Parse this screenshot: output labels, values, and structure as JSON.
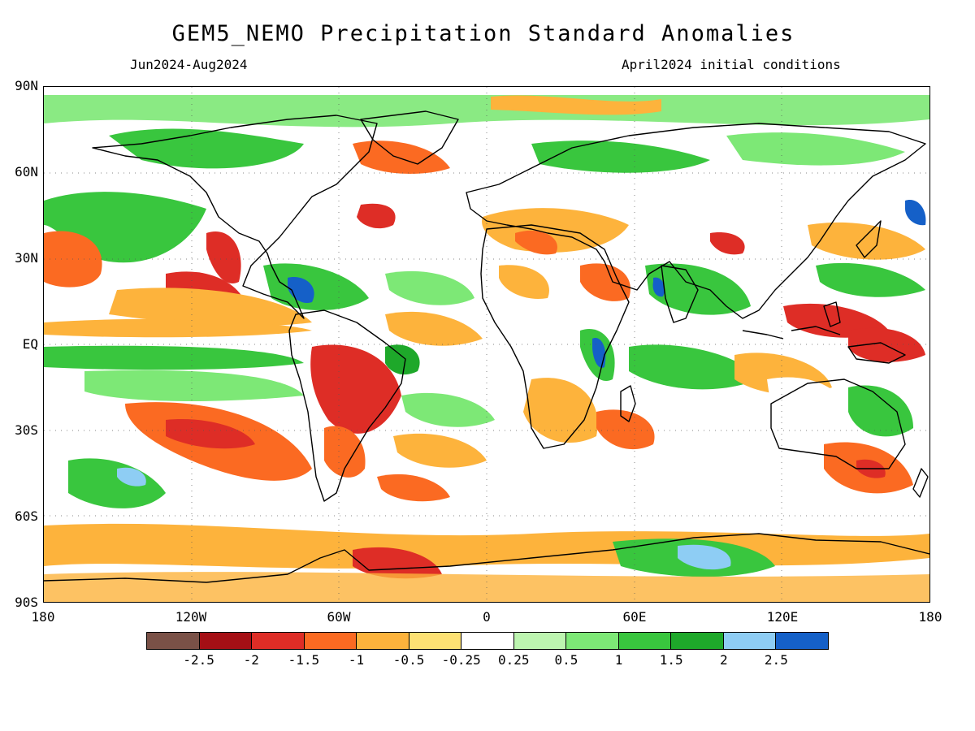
{
  "title": "GEM5_NEMO Precipitation Standard Anomalies",
  "subtitle_left": "Jun2024-Aug2024",
  "subtitle_right": "April2024 initial conditions",
  "map": {
    "projection": "equirectangular",
    "lon_range": [
      -180,
      180
    ],
    "lat_range": [
      -90,
      90
    ],
    "lat_labels": [
      "90N",
      "60N",
      "30N",
      "EQ",
      "30S",
      "60S",
      "90S"
    ],
    "lon_labels": [
      "180",
      "120W",
      "60W",
      "0",
      "60E",
      "120E",
      "180"
    ],
    "coastlines": true,
    "gridlines": "dotted",
    "variable": "precipitation standard anomaly"
  },
  "colorbar": {
    "colors": [
      "#7a5147",
      "#a50f15",
      "#de2d26",
      "#fb6a22",
      "#fdb33c",
      "#fde173",
      "#ffffff",
      "#bdf5b0",
      "#7de876",
      "#39c63e",
      "#1ea82a",
      "#8ecdf4",
      "#1560c8"
    ],
    "labels": [
      "-2.5",
      "-2",
      "-1.5",
      "-1",
      "-0.5",
      "-0.25",
      "0.25",
      "0.5",
      "1",
      "1.5",
      "2",
      "2.5"
    ]
  }
}
